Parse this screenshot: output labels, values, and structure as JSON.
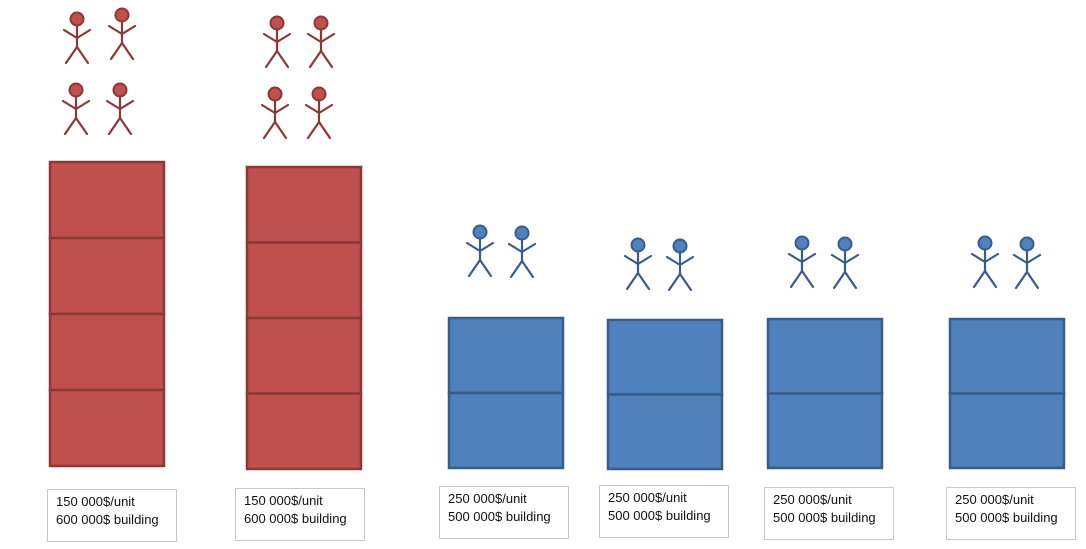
{
  "colors": {
    "red_fill": "#c0504d",
    "red_stroke": "#8c3836",
    "blue_fill": "#4f81bd",
    "blue_stroke": "#385d8a"
  },
  "person_icon": "stick-figure-icon",
  "buildings": [
    {
      "color": "red",
      "units": 4,
      "residents": 4,
      "price_per_unit": "150 000$/unit",
      "building_price": "600 000$ building"
    },
    {
      "color": "red",
      "units": 4,
      "residents": 4,
      "price_per_unit": "150 000$/unit",
      "building_price": "600 000$ building"
    },
    {
      "color": "blue",
      "units": 2,
      "residents": 2,
      "price_per_unit": "250 000$/unit",
      "building_price": "500 000$ building"
    },
    {
      "color": "blue",
      "units": 2,
      "residents": 2,
      "price_per_unit": "250 000$/unit",
      "building_price": "500 000$ building"
    },
    {
      "color": "blue",
      "units": 2,
      "residents": 2,
      "price_per_unit": "250 000$/unit",
      "building_price": "500 000$ building"
    },
    {
      "color": "blue",
      "units": 2,
      "residents": 2,
      "price_per_unit": "250 000$/unit",
      "building_price": "500 000$ building"
    }
  ]
}
